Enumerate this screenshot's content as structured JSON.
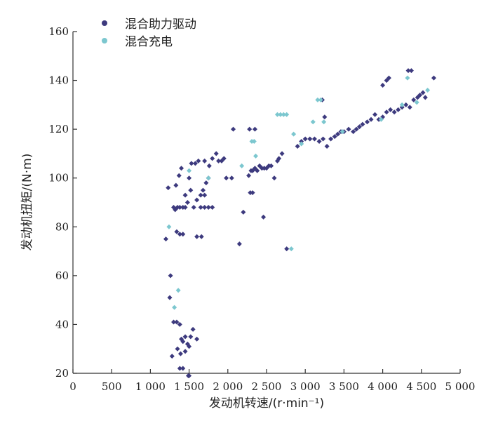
{
  "chart_data": {
    "type": "scatter",
    "title": "",
    "xlabel": "发动机转速/(r·min⁻¹)",
    "ylabel": "发动机扭矩/(N·m)",
    "xlim": [
      0,
      5000
    ],
    "ylim": [
      20,
      160
    ],
    "x_ticks": [
      0,
      500,
      1000,
      1500,
      2000,
      2500,
      3000,
      3500,
      4000,
      4500,
      5000
    ],
    "x_tick_labels": [
      "0",
      "500",
      "1 000",
      "1 500",
      "2 000",
      "2 500",
      "3 000",
      "3 500",
      "4 000",
      "4 500",
      "5 000"
    ],
    "y_ticks": [
      20,
      40,
      60,
      80,
      100,
      120,
      140,
      160
    ],
    "y_tick_labels": [
      "20",
      "40",
      "60",
      "80",
      "100",
      "120",
      "140",
      "160"
    ],
    "grid": false,
    "legend": {
      "placement": "top-left"
    },
    "series": [
      {
        "name": "混合助力驱动",
        "color": "#3d3a7e",
        "marker": "diamond",
        "points": [
          [
            1200,
            75
          ],
          [
            1230,
            96
          ],
          [
            1260,
            60
          ],
          [
            1300,
            88
          ],
          [
            1320,
            87
          ],
          [
            1350,
            88
          ],
          [
            1380,
            88
          ],
          [
            1420,
            88
          ],
          [
            1450,
            88
          ],
          [
            1340,
            78
          ],
          [
            1380,
            77
          ],
          [
            1420,
            77
          ],
          [
            1330,
            97
          ],
          [
            1370,
            101
          ],
          [
            1400,
            104
          ],
          [
            1450,
            93
          ],
          [
            1480,
            90
          ],
          [
            1520,
            95
          ],
          [
            1500,
            100
          ],
          [
            1530,
            106
          ],
          [
            1580,
            106
          ],
          [
            1620,
            107
          ],
          [
            1560,
            88
          ],
          [
            1600,
            91
          ],
          [
            1650,
            93
          ],
          [
            1700,
            93
          ],
          [
            1680,
            95
          ],
          [
            1720,
            98
          ],
          [
            1750,
            100
          ],
          [
            1650,
            88
          ],
          [
            1700,
            88
          ],
          [
            1750,
            88
          ],
          [
            1800,
            88
          ],
          [
            1600,
            76
          ],
          [
            1660,
            76
          ],
          [
            1700,
            107
          ],
          [
            1760,
            105
          ],
          [
            1800,
            108
          ],
          [
            1850,
            110
          ],
          [
            1880,
            107
          ],
          [
            1920,
            107
          ],
          [
            1950,
            108
          ],
          [
            1980,
            100
          ],
          [
            2050,
            100
          ],
          [
            2070,
            120
          ],
          [
            2150,
            73
          ],
          [
            2200,
            86
          ],
          [
            2270,
            101
          ],
          [
            2300,
            103
          ],
          [
            2320,
            103
          ],
          [
            2350,
            104
          ],
          [
            2380,
            103
          ],
          [
            2410,
            105
          ],
          [
            2440,
            104
          ],
          [
            2470,
            104
          ],
          [
            2500,
            104
          ],
          [
            2530,
            105
          ],
          [
            2560,
            105
          ],
          [
            2280,
            120
          ],
          [
            2350,
            120
          ],
          [
            2290,
            94
          ],
          [
            2320,
            94
          ],
          [
            2460,
            84
          ],
          [
            2600,
            100
          ],
          [
            2640,
            107
          ],
          [
            2660,
            108
          ],
          [
            2700,
            110
          ],
          [
            2760,
            71
          ],
          [
            2900,
            113
          ],
          [
            2950,
            115
          ],
          [
            3000,
            116
          ],
          [
            3060,
            116
          ],
          [
            3120,
            116
          ],
          [
            3180,
            115
          ],
          [
            3230,
            116
          ],
          [
            3280,
            113
          ],
          [
            3330,
            116
          ],
          [
            3380,
            117
          ],
          [
            3420,
            118
          ],
          [
            3460,
            119
          ],
          [
            3500,
            119
          ],
          [
            3560,
            120
          ],
          [
            3620,
            119
          ],
          [
            3660,
            120
          ],
          [
            3700,
            121
          ],
          [
            3740,
            122
          ],
          [
            3800,
            123
          ],
          [
            3850,
            124
          ],
          [
            3900,
            126
          ],
          [
            3950,
            124
          ],
          [
            4000,
            125
          ],
          [
            4050,
            127
          ],
          [
            4100,
            128
          ],
          [
            4150,
            127
          ],
          [
            4200,
            128
          ],
          [
            4250,
            129
          ],
          [
            4300,
            130
          ],
          [
            4350,
            129
          ],
          [
            4400,
            132
          ],
          [
            4450,
            133
          ],
          [
            4480,
            134
          ],
          [
            4520,
            135
          ],
          [
            4550,
            133
          ],
          [
            4000,
            138
          ],
          [
            4050,
            140
          ],
          [
            4080,
            141
          ],
          [
            4330,
            144
          ],
          [
            4370,
            144
          ],
          [
            4660,
            141
          ],
          [
            3220,
            132
          ],
          [
            3250,
            125
          ],
          [
            1300,
            41
          ],
          [
            1340,
            41
          ],
          [
            1380,
            40
          ],
          [
            1400,
            34
          ],
          [
            1420,
            33
          ],
          [
            1450,
            35
          ],
          [
            1480,
            32
          ],
          [
            1500,
            31
          ],
          [
            1520,
            35
          ],
          [
            1550,
            38
          ],
          [
            1600,
            34
          ],
          [
            1350,
            30
          ],
          [
            1390,
            28
          ],
          [
            1450,
            29
          ],
          [
            1380,
            22
          ],
          [
            1420,
            22
          ],
          [
            1490,
            19
          ],
          [
            1500,
            19
          ],
          [
            1250,
            51
          ],
          [
            1280,
            27
          ]
        ]
      },
      {
        "name": "混合充电",
        "color": "#7cc7cf",
        "marker": "diamond",
        "points": [
          [
            1240,
            80
          ],
          [
            1310,
            47
          ],
          [
            1360,
            54
          ],
          [
            1500,
            103
          ],
          [
            1750,
            100
          ],
          [
            2180,
            105
          ],
          [
            2310,
            115
          ],
          [
            2340,
            115
          ],
          [
            2360,
            109
          ],
          [
            2640,
            126
          ],
          [
            2680,
            126
          ],
          [
            2720,
            126
          ],
          [
            2760,
            126
          ],
          [
            2820,
            71
          ],
          [
            2850,
            118
          ],
          [
            2950,
            114
          ],
          [
            3100,
            123
          ],
          [
            3160,
            132
          ],
          [
            3200,
            132
          ],
          [
            3240,
            123
          ],
          [
            3480,
            119
          ],
          [
            3980,
            124
          ],
          [
            4250,
            130
          ],
          [
            4320,
            141
          ],
          [
            4440,
            131
          ],
          [
            4580,
            136
          ]
        ]
      }
    ]
  }
}
